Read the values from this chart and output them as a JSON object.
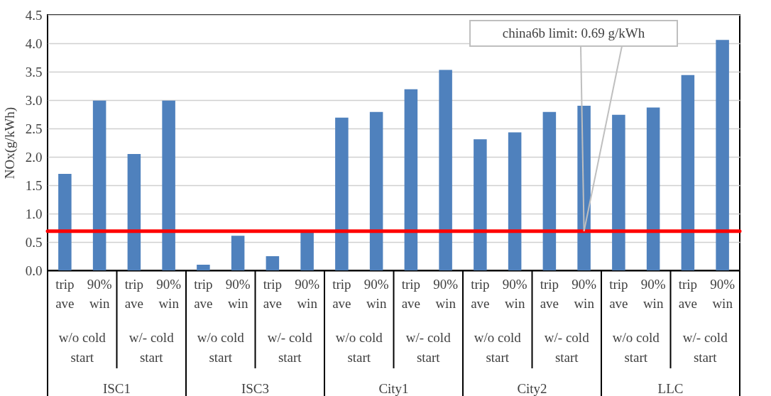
{
  "chart_data": {
    "type": "bar",
    "ylabel": "NOx(g/kWh)",
    "categories": [
      "trip ave",
      "90% win",
      "trip ave",
      "90% win",
      "trip ave",
      "90% win",
      "trip ave",
      "90% win",
      "trip ave",
      "90% win",
      "trip ave",
      "90% win",
      "trip ave",
      "90% win",
      "trip ave",
      "90% win",
      "trip ave",
      "90% win",
      "trip ave",
      "90% win"
    ],
    "values": [
      1.7,
      2.99,
      2.05,
      2.99,
      0.1,
      0.61,
      0.25,
      0.68,
      2.69,
      2.79,
      3.19,
      3.53,
      2.31,
      2.43,
      2.79,
      2.9,
      2.74,
      2.87,
      3.44,
      4.06
    ],
    "color": "#4f81bd",
    "ylim": [
      0,
      4.5
    ],
    "yticks": [
      {
        "value": 0,
        "label": "0.0"
      },
      0.5,
      {
        "value": 1,
        "label": "1.0"
      },
      1.5,
      {
        "value": 2,
        "label": "2.0"
      },
      2.5,
      {
        "value": 3,
        "label": "3.0"
      },
      3.5,
      {
        "value": 4,
        "label": "4.0"
      },
      4.5
    ],
    "grid": "y",
    "ref_lines": [
      {
        "axis": "y",
        "value": 0.69,
        "label": "china6b limit: 0.69 g/kWh",
        "color": "#ff0000"
      }
    ],
    "annotations": [
      "w/o cold start",
      "w/- cold start",
      "w/o cold start",
      "w/- cold start",
      "w/o cold start",
      "w/- cold start",
      "w/o cold start",
      "w/- cold start",
      "w/o cold start",
      "w/- cold start",
      "ISC1",
      "ISC3",
      "City1",
      "City2",
      "LLC"
    ]
  }
}
